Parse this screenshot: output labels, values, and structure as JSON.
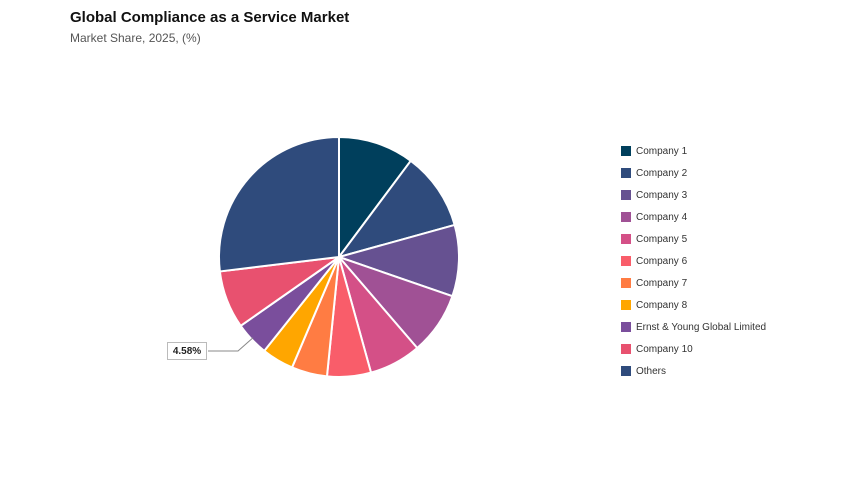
{
  "chart_data": {
    "type": "pie",
    "title": "Global Compliance as a Service Market",
    "subtitle": "Market Share, 2025, (%)",
    "legend_position": "right",
    "categories": [
      "Company 1",
      "Company 2",
      "Company 3",
      "Company 4",
      "Company 5",
      "Company 6",
      "Company 7",
      "Company 8",
      "Ernst & Young Global Limited",
      "Company 10",
      "Others"
    ],
    "values": [
      10.2,
      10.5,
      9.6,
      8.4,
      7.0,
      5.9,
      4.8,
      4.3,
      4.58,
      7.8,
      26.92
    ],
    "colors": [
      "#003f5c",
      "#2f4b7c",
      "#665191",
      "#a05195",
      "#d45087",
      "#f95d6a",
      "#ff7c43",
      "#ffa600",
      "#7a4e9c",
      "#e8516f",
      "#2f4b7c"
    ],
    "data_labels": [
      {
        "index": 8,
        "text": "4.58%"
      }
    ]
  }
}
